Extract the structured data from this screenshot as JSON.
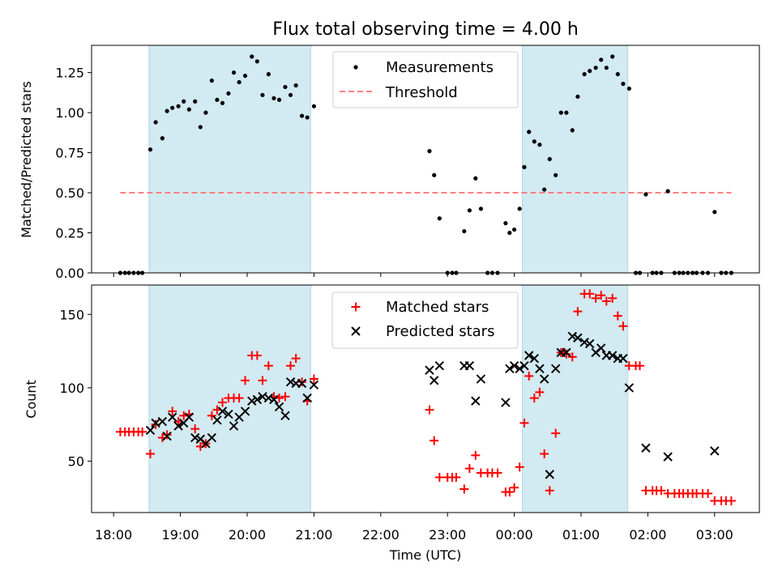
{
  "colors": {
    "band": "#add8e6",
    "threshold": "#ff7f7f",
    "matched": "#ff0000",
    "predicted": "#000000",
    "measurement": "#000000"
  },
  "chart_data": [
    {
      "type": "scatter",
      "title": "Flux total observing time = 4.00 h",
      "xlabel": "",
      "ylabel": "Matched/Predicted stars",
      "xlim": [
        17.67,
        27.67
      ],
      "ylim": [
        0,
        1.42
      ],
      "yticks": [
        0,
        0.25,
        0.5,
        0.75,
        1.0,
        1.25
      ],
      "ytick_labels": [
        "0.00",
        "0.25",
        "0.50",
        "0.75",
        "1.00",
        "1.25"
      ],
      "xticks": [
        18,
        19,
        20,
        21,
        22,
        23,
        24,
        25,
        26,
        27
      ],
      "shaded_intervals": [
        [
          18.53,
          20.95
        ],
        [
          24.12,
          25.7
        ]
      ],
      "legend": {
        "position": "top-center",
        "entries": [
          "Measurements",
          "Threshold"
        ]
      },
      "threshold": {
        "name": "Threshold",
        "y": 0.5,
        "x_range": [
          18.1,
          27.25
        ]
      },
      "series": [
        {
          "name": "Measurements",
          "points": [
            [
              18.1,
              0
            ],
            [
              18.17,
              0
            ],
            [
              18.23,
              0
            ],
            [
              18.3,
              0
            ],
            [
              18.37,
              0
            ],
            [
              18.43,
              0
            ],
            [
              18.55,
              0.77
            ],
            [
              18.63,
              0.94
            ],
            [
              18.73,
              0.84
            ],
            [
              18.8,
              1.01
            ],
            [
              18.88,
              1.03
            ],
            [
              18.97,
              1.04
            ],
            [
              19.05,
              1.07
            ],
            [
              19.13,
              1.02
            ],
            [
              19.22,
              1.07
            ],
            [
              19.3,
              0.91
            ],
            [
              19.38,
              1.0
            ],
            [
              19.47,
              1.2
            ],
            [
              19.55,
              1.08
            ],
            [
              19.63,
              1.06
            ],
            [
              19.72,
              1.12
            ],
            [
              19.8,
              1.25
            ],
            [
              19.88,
              1.19
            ],
            [
              19.97,
              1.23
            ],
            [
              20.07,
              1.35
            ],
            [
              20.15,
              1.32
            ],
            [
              20.23,
              1.11
            ],
            [
              20.32,
              1.24
            ],
            [
              20.4,
              1.09
            ],
            [
              20.48,
              1.08
            ],
            [
              20.57,
              1.16
            ],
            [
              20.65,
              1.11
            ],
            [
              20.73,
              1.17
            ],
            [
              20.82,
              0.98
            ],
            [
              20.9,
              0.97
            ],
            [
              21.0,
              1.04
            ],
            [
              22.73,
              0.76
            ],
            [
              22.8,
              0.61
            ],
            [
              22.88,
              0.34
            ],
            [
              23.0,
              0
            ],
            [
              23.07,
              0
            ],
            [
              23.13,
              0
            ],
            [
              23.25,
              0.26
            ],
            [
              23.33,
              0.39
            ],
            [
              23.42,
              0.59
            ],
            [
              23.5,
              0.4
            ],
            [
              23.6,
              0
            ],
            [
              23.67,
              0
            ],
            [
              23.75,
              0
            ],
            [
              23.87,
              0.31
            ],
            [
              23.93,
              0.25
            ],
            [
              24.0,
              0.27
            ],
            [
              24.08,
              0.4
            ],
            [
              24.15,
              0.66
            ],
            [
              24.22,
              0.88
            ],
            [
              24.3,
              0.82
            ],
            [
              24.38,
              0.8
            ],
            [
              24.45,
              0.52
            ],
            [
              24.53,
              0.71
            ],
            [
              24.62,
              0.61
            ],
            [
              24.7,
              1.0
            ],
            [
              24.78,
              1.0
            ],
            [
              24.87,
              0.89
            ],
            [
              24.95,
              1.1
            ],
            [
              25.05,
              1.24
            ],
            [
              25.13,
              1.26
            ],
            [
              25.22,
              1.28
            ],
            [
              25.3,
              1.33
            ],
            [
              25.38,
              1.28
            ],
            [
              25.47,
              1.35
            ],
            [
              25.55,
              1.24
            ],
            [
              25.63,
              1.18
            ],
            [
              25.72,
              1.15
            ],
            [
              25.82,
              0
            ],
            [
              25.88,
              0
            ],
            [
              25.97,
              0.49
            ],
            [
              26.07,
              0
            ],
            [
              26.13,
              0
            ],
            [
              26.2,
              0
            ],
            [
              26.3,
              0.51
            ],
            [
              26.4,
              0
            ],
            [
              26.47,
              0
            ],
            [
              26.53,
              0
            ],
            [
              26.6,
              0
            ],
            [
              26.67,
              0
            ],
            [
              26.73,
              0
            ],
            [
              26.82,
              0
            ],
            [
              26.9,
              0
            ],
            [
              27.0,
              0.38
            ],
            [
              27.1,
              0
            ],
            [
              27.17,
              0
            ],
            [
              27.25,
              0
            ]
          ]
        }
      ]
    },
    {
      "type": "scatter",
      "title": "",
      "xlabel": "Time (UTC)",
      "ylabel": "Count",
      "xlim": [
        17.67,
        27.67
      ],
      "ylim": [
        15,
        170
      ],
      "yticks": [
        50,
        100,
        150
      ],
      "ytick_labels": [
        "50",
        "100",
        "150"
      ],
      "xticks": [
        18,
        19,
        20,
        21,
        22,
        23,
        24,
        25,
        26,
        27
      ],
      "xtick_labels": [
        "18:00",
        "19:00",
        "20:00",
        "21:00",
        "22:00",
        "23:00",
        "00:00",
        "01:00",
        "02:00",
        "03:00"
      ],
      "shaded_intervals": [
        [
          18.53,
          20.95
        ],
        [
          24.12,
          25.7
        ]
      ],
      "legend": {
        "position": "top-center",
        "entries": [
          "Matched stars",
          "Predicted stars"
        ]
      },
      "series": [
        {
          "name": "Matched stars",
          "marker": "+",
          "points": [
            [
              18.1,
              70
            ],
            [
              18.17,
              70
            ],
            [
              18.23,
              70
            ],
            [
              18.3,
              70
            ],
            [
              18.37,
              70
            ],
            [
              18.43,
              70
            ],
            [
              18.55,
              55
            ],
            [
              18.63,
              75
            ],
            [
              18.73,
              66
            ],
            [
              18.8,
              68
            ],
            [
              18.88,
              84
            ],
            [
              18.97,
              77
            ],
            [
              19.05,
              81
            ],
            [
              19.13,
              82
            ],
            [
              19.22,
              72
            ],
            [
              19.3,
              60
            ],
            [
              19.38,
              62
            ],
            [
              19.47,
              81
            ],
            [
              19.55,
              85
            ],
            [
              19.63,
              90
            ],
            [
              19.72,
              93
            ],
            [
              19.8,
              93
            ],
            [
              19.88,
              93
            ],
            [
              19.97,
              105
            ],
            [
              20.07,
              122
            ],
            [
              20.15,
              122
            ],
            [
              20.23,
              105
            ],
            [
              20.32,
              115
            ],
            [
              20.4,
              94
            ],
            [
              20.48,
              93
            ],
            [
              20.57,
              94
            ],
            [
              20.65,
              115
            ],
            [
              20.73,
              120
            ],
            [
              20.82,
              104
            ],
            [
              20.9,
              91
            ],
            [
              21.0,
              106
            ],
            [
              22.73,
              85
            ],
            [
              22.8,
              64
            ],
            [
              22.88,
              39
            ],
            [
              23.0,
              39
            ],
            [
              23.07,
              39
            ],
            [
              23.13,
              39
            ],
            [
              23.25,
              31
            ],
            [
              23.33,
              45
            ],
            [
              23.42,
              54
            ],
            [
              23.5,
              42
            ],
            [
              23.6,
              42
            ],
            [
              23.67,
              42
            ],
            [
              23.75,
              42
            ],
            [
              23.87,
              29
            ],
            [
              23.93,
              29
            ],
            [
              24.0,
              32
            ],
            [
              24.08,
              46
            ],
            [
              24.15,
              76
            ],
            [
              24.22,
              108
            ],
            [
              24.3,
              93
            ],
            [
              24.38,
              97
            ],
            [
              24.45,
              55
            ],
            [
              24.53,
              30
            ],
            [
              24.62,
              69
            ],
            [
              24.7,
              124
            ],
            [
              24.78,
              123
            ],
            [
              24.87,
              121
            ],
            [
              24.95,
              152
            ],
            [
              25.05,
              164
            ],
            [
              25.13,
              164
            ],
            [
              25.22,
              161
            ],
            [
              25.3,
              163
            ],
            [
              25.38,
              159
            ],
            [
              25.47,
              161
            ],
            [
              25.55,
              149
            ],
            [
              25.63,
              142
            ],
            [
              25.72,
              115
            ],
            [
              25.82,
              115
            ],
            [
              25.88,
              115
            ],
            [
              25.97,
              30
            ],
            [
              26.07,
              30
            ],
            [
              26.13,
              30
            ],
            [
              26.2,
              30
            ],
            [
              26.3,
              28
            ],
            [
              26.4,
              28
            ],
            [
              26.47,
              28
            ],
            [
              26.53,
              28
            ],
            [
              26.6,
              28
            ],
            [
              26.67,
              28
            ],
            [
              26.73,
              28
            ],
            [
              26.82,
              28
            ],
            [
              26.9,
              28
            ],
            [
              27.0,
              23
            ],
            [
              27.1,
              23
            ],
            [
              27.17,
              23
            ],
            [
              27.25,
              23
            ]
          ]
        },
        {
          "name": "Predicted stars",
          "marker": "x",
          "points": [
            [
              18.55,
              71
            ],
            [
              18.63,
              76
            ],
            [
              18.73,
              77
            ],
            [
              18.8,
              67
            ],
            [
              18.88,
              80
            ],
            [
              18.97,
              74
            ],
            [
              19.05,
              76
            ],
            [
              19.13,
              80
            ],
            [
              19.22,
              66
            ],
            [
              19.3,
              65
            ],
            [
              19.38,
              62
            ],
            [
              19.47,
              66
            ],
            [
              19.55,
              78
            ],
            [
              19.63,
              84
            ],
            [
              19.72,
              82
            ],
            [
              19.8,
              74
            ],
            [
              19.88,
              80
            ],
            [
              19.97,
              84
            ],
            [
              20.07,
              91
            ],
            [
              20.15,
              92
            ],
            [
              20.23,
              94
            ],
            [
              20.32,
              93
            ],
            [
              20.4,
              92
            ],
            [
              20.48,
              87
            ],
            [
              20.57,
              81
            ],
            [
              20.65,
              104
            ],
            [
              20.73,
              103
            ],
            [
              20.82,
              103
            ],
            [
              20.9,
              93
            ],
            [
              21.0,
              102
            ],
            [
              22.73,
              112
            ],
            [
              22.8,
              105
            ],
            [
              22.88,
              115
            ],
            [
              23.25,
              115
            ],
            [
              23.33,
              115
            ],
            [
              23.42,
              91
            ],
            [
              23.5,
              106
            ],
            [
              23.87,
              90
            ],
            [
              23.93,
              113
            ],
            [
              24.0,
              115
            ],
            [
              24.08,
              113
            ],
            [
              24.15,
              115
            ],
            [
              24.22,
              122
            ],
            [
              24.3,
              120
            ],
            [
              24.38,
              113
            ],
            [
              24.45,
              106
            ],
            [
              24.53,
              41
            ],
            [
              24.62,
              113
            ],
            [
              24.7,
              124
            ],
            [
              24.78,
              124
            ],
            [
              24.87,
              135
            ],
            [
              24.95,
              134
            ],
            [
              25.05,
              131
            ],
            [
              25.13,
              130
            ],
            [
              25.22,
              124
            ],
            [
              25.3,
              127
            ],
            [
              25.38,
              122
            ],
            [
              25.47,
              122
            ],
            [
              25.55,
              120
            ],
            [
              25.63,
              120
            ],
            [
              25.72,
              100
            ],
            [
              25.97,
              59
            ],
            [
              26.3,
              53
            ],
            [
              27.0,
              57
            ]
          ]
        }
      ]
    }
  ]
}
